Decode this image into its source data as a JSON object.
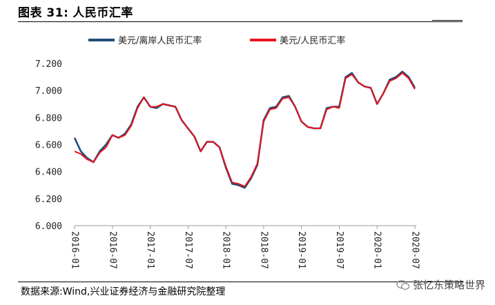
{
  "figure": {
    "title_prefix": "图表 31:",
    "title": "人民币汇率",
    "source": "数据来源:Wind,兴业证券经济与金融研究院整理",
    "watermark": "张忆东策略世界"
  },
  "colors": {
    "cnh": "#1f4e79",
    "cny": "#e8131c"
  },
  "icons": {
    "watermark": "wechat-icon"
  },
  "chart_data": {
    "type": "line",
    "title": "",
    "xlabel": "",
    "ylabel": "",
    "ylim": [
      6.0,
      7.2
    ],
    "yticks": [
      "6.000",
      "6.200",
      "6.400",
      "6.600",
      "6.800",
      "7.000",
      "7.200"
    ],
    "xticks": [
      "2016-01",
      "2016-07",
      "2017-01",
      "2017-07",
      "2018-01",
      "2018-07",
      "2019-01",
      "2019-07",
      "2020-01",
      "2020-07"
    ],
    "grid": false,
    "legend": "top",
    "x": [
      "2016-01",
      "2016-02",
      "2016-03",
      "2016-04",
      "2016-05",
      "2016-06",
      "2016-07",
      "2016-08",
      "2016-09",
      "2016-10",
      "2016-11",
      "2016-12",
      "2017-01",
      "2017-02",
      "2017-03",
      "2017-04",
      "2017-05",
      "2017-06",
      "2017-07",
      "2017-08",
      "2017-09",
      "2017-10",
      "2017-11",
      "2017-12",
      "2018-01",
      "2018-02",
      "2018-03",
      "2018-04",
      "2018-05",
      "2018-06",
      "2018-07",
      "2018-08",
      "2018-09",
      "2018-10",
      "2018-11",
      "2018-12",
      "2019-01",
      "2019-02",
      "2019-03",
      "2019-04",
      "2019-05",
      "2019-06",
      "2019-07",
      "2019-08",
      "2019-09",
      "2019-10",
      "2019-11",
      "2019-12",
      "2020-01",
      "2020-02",
      "2020-03",
      "2020-04",
      "2020-05",
      "2020-06",
      "2020-07"
    ],
    "series": [
      {
        "name": "美元/离岸人民币汇率",
        "values": [
          6.65,
          6.55,
          6.5,
          6.47,
          6.55,
          6.6,
          6.67,
          6.65,
          6.68,
          6.75,
          6.88,
          6.95,
          6.88,
          6.87,
          6.9,
          6.89,
          6.88,
          6.78,
          6.72,
          6.66,
          6.55,
          6.62,
          6.62,
          6.58,
          6.43,
          6.31,
          6.3,
          6.28,
          6.35,
          6.45,
          6.78,
          6.87,
          6.88,
          6.95,
          6.96,
          6.88,
          6.77,
          6.73,
          6.72,
          6.72,
          6.87,
          6.88,
          6.88,
          7.1,
          7.13,
          7.06,
          7.03,
          7.02,
          6.9,
          6.98,
          7.08,
          7.1,
          7.14,
          7.1,
          7.02
        ]
      },
      {
        "name": "美元/人民币汇率",
        "values": [
          6.55,
          6.53,
          6.49,
          6.47,
          6.54,
          6.58,
          6.67,
          6.65,
          6.67,
          6.74,
          6.87,
          6.95,
          6.88,
          6.88,
          6.9,
          6.89,
          6.88,
          6.78,
          6.72,
          6.66,
          6.55,
          6.62,
          6.62,
          6.58,
          6.44,
          6.32,
          6.31,
          6.29,
          6.36,
          6.46,
          6.77,
          6.86,
          6.87,
          6.94,
          6.95,
          6.88,
          6.77,
          6.73,
          6.72,
          6.72,
          6.86,
          6.88,
          6.87,
          7.09,
          7.12,
          7.06,
          7.03,
          7.02,
          6.9,
          6.98,
          7.07,
          7.09,
          7.13,
          7.09,
          7.01
        ]
      }
    ]
  }
}
